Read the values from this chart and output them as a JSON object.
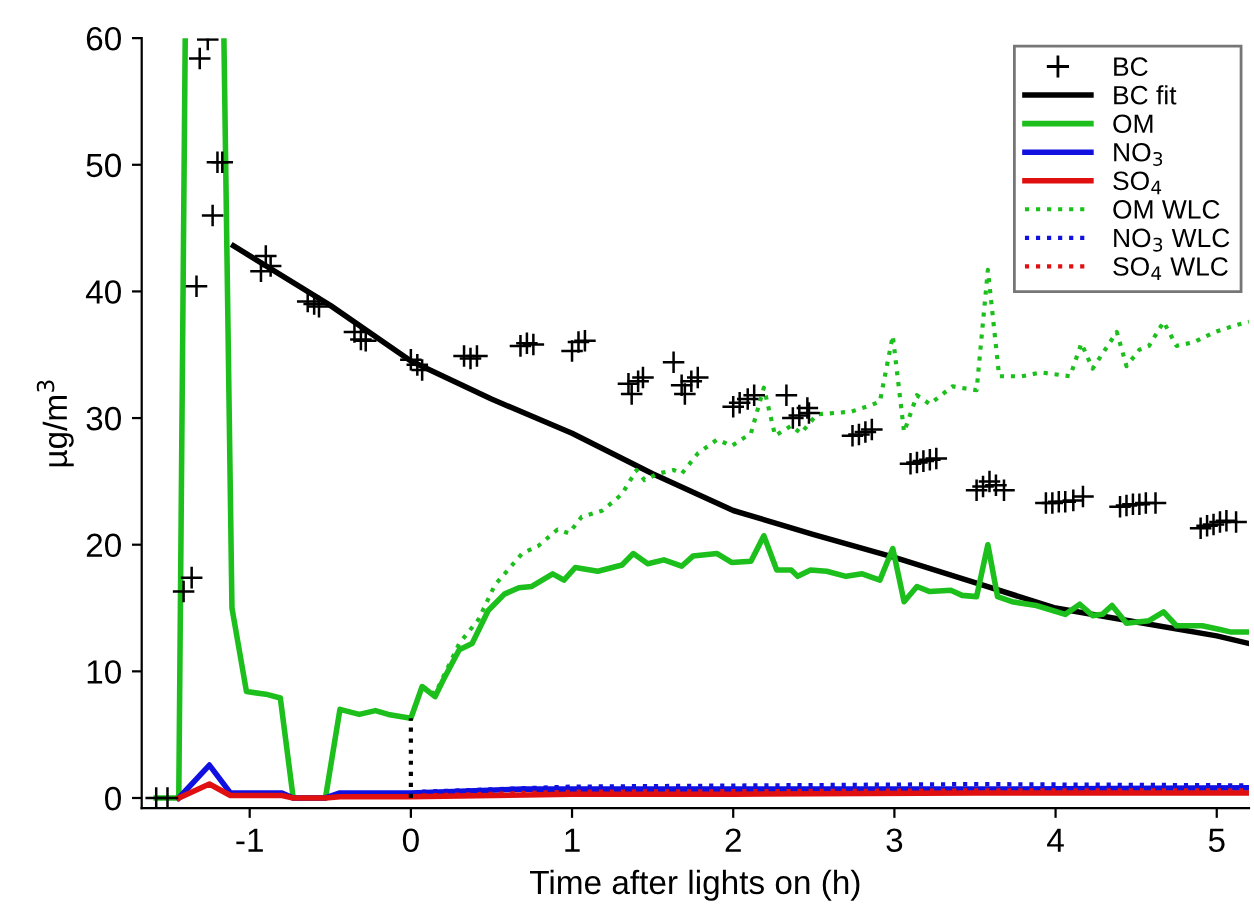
{
  "chart_data": {
    "type": "line",
    "xlabel": "Time after lights on (h)",
    "ylabel": "µg/m$^{3}$",
    "xlim": [
      -1.67,
      5.2
    ],
    "ylim": [
      -0.8,
      60
    ],
    "xticks": [
      -1,
      0,
      1,
      2,
      3,
      4,
      5
    ],
    "yticks": [
      0,
      10,
      20,
      30,
      40,
      50,
      60
    ],
    "grid": false,
    "legend": "top right",
    "series": [
      {
        "name": "BC",
        "type": "scatter",
        "marker": "cross",
        "color": "#000000",
        "x": [
          -1.58,
          -1.51,
          -1.41,
          -1.36,
          -1.33,
          -1.31,
          -1.26,
          -1.23,
          -1.2,
          -1.17,
          -0.93,
          -0.9,
          -0.87,
          -0.64,
          -0.6,
          -0.57,
          -0.35,
          -0.31,
          -0.28,
          0,
          0.04,
          0.07,
          0.33,
          0.37,
          0.41,
          0.68,
          0.72,
          0.76,
          1.0,
          1.04,
          1.08,
          1.35,
          1.37,
          1.41,
          1.44,
          1.63,
          1.68,
          1.7,
          1.74,
          1.78,
          2.0,
          2.04,
          2.09,
          2.13,
          2.33,
          2.37,
          2.41,
          2.46,
          2.47,
          2.74,
          2.78,
          2.82,
          2.86,
          3.1,
          3.14,
          3.18,
          3.22,
          3.26,
          3.51,
          3.55,
          3.59,
          3.63,
          3.68,
          3.94,
          3.98,
          4.02,
          4.06,
          4.11,
          4.17,
          4.4,
          4.44,
          4.48,
          4.52,
          4.56,
          4.62,
          4.9,
          4.94,
          4.98,
          5.02,
          5.06,
          5.12
        ],
        "values": [
          0,
          0,
          16.3,
          17.4,
          40.4,
          58.4,
          59.9,
          46,
          50.2,
          50.2,
          41.6,
          42.8,
          42.0,
          39.2,
          39.0,
          38.8,
          36.8,
          36.2,
          36.1,
          34.6,
          34.2,
          33.8,
          34.9,
          34.7,
          34.9,
          35.7,
          35.9,
          35.8,
          35.3,
          36.0,
          36.1,
          32.7,
          31.9,
          32.9,
          33.2,
          34.4,
          32.6,
          31.9,
          32.9,
          33.2,
          30.9,
          31.2,
          31.5,
          31.8,
          31.8,
          30.0,
          30.2,
          30.8,
          30.4,
          28.6,
          28.7,
          28.9,
          29.1,
          26.4,
          26.5,
          26.6,
          26.7,
          26.8,
          24.3,
          24.6,
          25.0,
          24.7,
          24.3,
          23.3,
          23.3,
          23.4,
          23.4,
          23.5,
          23.8,
          23.0,
          23.1,
          23.2,
          23.2,
          23.3,
          23.3,
          21.3,
          21.5,
          21.6,
          21.8,
          21.9,
          21.8
        ]
      },
      {
        "name": "BC fit",
        "color": "#000000",
        "line_style": "solid",
        "x": [
          -1.1,
          -0.5,
          0,
          0.5,
          1,
          1.5,
          2,
          2.5,
          3,
          3.5,
          4,
          4.5,
          5,
          5.2
        ],
        "values": [
          43.6,
          38.9,
          34.5,
          31.5,
          28.8,
          25.6,
          22.7,
          20.8,
          19.0,
          17.0,
          15.0,
          13.9,
          12.8,
          12.2
        ]
      },
      {
        "name": "OM",
        "color": "#1cbf1c",
        "line_style": "solid",
        "x": [
          -1.58,
          -1.44,
          -1.4,
          -1.28,
          -1.16,
          -1.11,
          -1.02,
          -0.9,
          -0.81,
          -0.73,
          -0.53,
          -0.44,
          -0.32,
          -0.22,
          -0.14,
          0,
          0.07,
          0.15,
          0.2,
          0.3,
          0.38,
          0.48,
          0.58,
          0.67,
          0.75,
          0.88,
          0.95,
          1.02,
          1.16,
          1.31,
          1.38,
          1.47,
          1.57,
          1.68,
          1.75,
          1.9,
          1.99,
          2.11,
          2.19,
          2.27,
          2.36,
          2.4,
          2.48,
          2.58,
          2.7,
          2.8,
          2.91,
          2.99,
          3.06,
          3.14,
          3.22,
          3.35,
          3.42,
          3.51,
          3.58,
          3.64,
          3.73,
          3.88,
          4.06,
          4.15,
          4.23,
          4.29,
          4.35,
          4.44,
          4.58,
          4.67,
          4.75,
          4.91,
          5.02,
          5.09,
          5.2
        ],
        "values": [
          0,
          0,
          60,
          null,
          60,
          15,
          8.4,
          8.2,
          7.9,
          0,
          0,
          7.0,
          6.6,
          6.9,
          6.6,
          6.3,
          8.8,
          8.0,
          9.3,
          11.7,
          12.2,
          14.8,
          16.1,
          16.6,
          16.7,
          17.7,
          17.2,
          18.2,
          17.9,
          18.4,
          19.3,
          18.5,
          18.8,
          18.3,
          19.1,
          19.3,
          18.6,
          18.7,
          20.7,
          18.0,
          18.0,
          17.5,
          18.0,
          17.9,
          17.5,
          17.7,
          17.2,
          19.7,
          15.5,
          16.7,
          16.3,
          16.4,
          16.0,
          15.9,
          20.0,
          15.9,
          15.5,
          15.2,
          14.5,
          15.3,
          14.4,
          14.5,
          15.2,
          13.8,
          14.0,
          14.7,
          13.6,
          13.6,
          13.3,
          13.1,
          13.1
        ]
      },
      {
        "name": "NO$_{3}$",
        "color": "#1010e0",
        "line_style": "solid",
        "x": [
          -1.44,
          -1.25,
          -1.12,
          -0.8,
          -0.73,
          -0.53,
          -0.44,
          0,
          0.7,
          2,
          3.5,
          5.2
        ],
        "values": [
          0,
          2.6,
          0.4,
          0.4,
          0,
          0,
          0.4,
          0.4,
          0.7,
          0.7,
          0.7,
          0.8
        ]
      },
      {
        "name": "SO$_{4}$",
        "color": "#e01010",
        "line_style": "solid",
        "x": [
          -1.44,
          -1.25,
          -1.12,
          -0.8,
          -0.73,
          -0.53,
          -0.44,
          0,
          1,
          2,
          3.5,
          5.2
        ],
        "values": [
          0,
          1.1,
          0.2,
          0.2,
          0,
          0,
          0.1,
          0.1,
          0.3,
          0.3,
          0.4,
          0.4
        ]
      },
      {
        "name": "OM WLC",
        "color": "#1cbf1c",
        "line_style": "dotted",
        "x": [
          0.07,
          0.15,
          0.3,
          0.42,
          0.52,
          0.69,
          0.79,
          0.91,
          0.98,
          1.06,
          1.19,
          1.31,
          1.4,
          1.45,
          1.53,
          1.63,
          1.68,
          1.78,
          1.9,
          1.99,
          2.11,
          2.19,
          2.26,
          2.36,
          2.42,
          2.52,
          2.73,
          2.85,
          2.91,
          2.99,
          3.06,
          3.14,
          3.22,
          3.36,
          3.51,
          3.58,
          3.65,
          3.79,
          3.91,
          4.09,
          4.16,
          4.23,
          4.38,
          4.44,
          4.52,
          4.58,
          4.67,
          4.75,
          4.86,
          4.99,
          5.11,
          5.2
        ],
        "values": [
          8.8,
          8.2,
          12.2,
          14.1,
          16.8,
          19.3,
          19.9,
          21.2,
          20.9,
          22.2,
          22.7,
          24.0,
          25.9,
          25.1,
          25.6,
          25.9,
          25.6,
          27.2,
          28.3,
          27.8,
          28.8,
          32.4,
          28.6,
          29.4,
          28.8,
          30.3,
          30.5,
          31.0,
          31.3,
          36.5,
          28.9,
          31.8,
          31.1,
          32.5,
          32.2,
          41.7,
          33.3,
          33.3,
          33.6,
          33.3,
          35.9,
          33.9,
          36.8,
          34.1,
          35.4,
          35.7,
          37.6,
          35.7,
          36.0,
          36.8,
          37.3,
          37.6
        ]
      },
      {
        "name": "NO$_{3}$ WLC",
        "color": "#1010e0",
        "line_style": "dotted",
        "x": [
          0.07,
          1,
          2.2,
          3.5,
          5.2
        ],
        "values": [
          0.5,
          0.9,
          1.0,
          1.1,
          1.0
        ]
      },
      {
        "name": "SO$_{4}$ WLC",
        "color": "#e01010",
        "line_style": "dotted",
        "x": [
          0.07,
          1,
          3.5,
          5.2
        ],
        "values": [
          0.2,
          0.5,
          0.6,
          0.6
        ]
      },
      {
        "color": "#000000",
        "line_style": "dotted",
        "x": [
          0,
          0
        ],
        "values": [
          0,
          6.3
        ]
      }
    ]
  }
}
